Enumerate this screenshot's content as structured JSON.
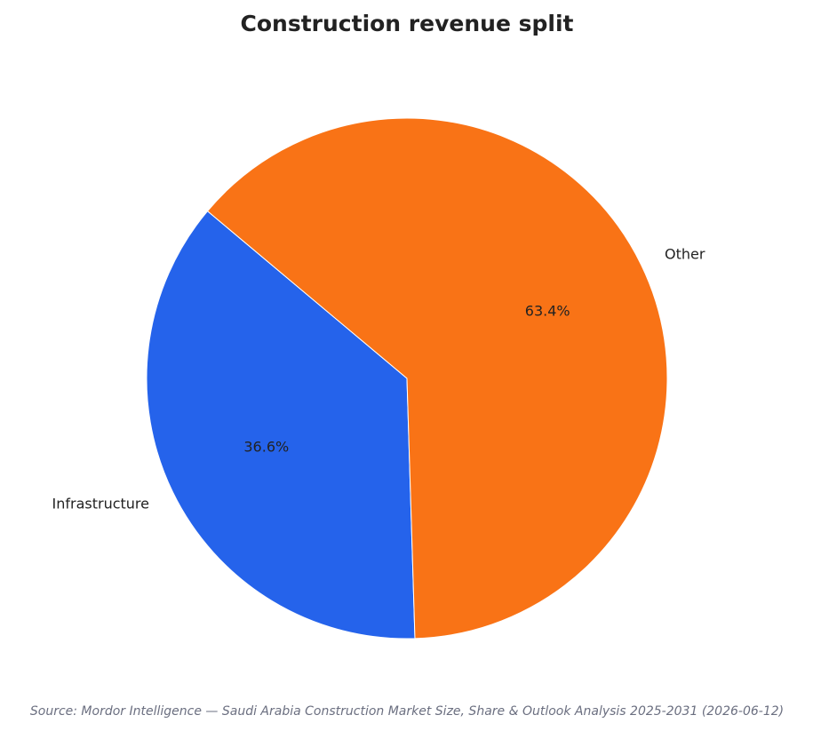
{
  "chart_data": {
    "type": "pie",
    "title": "Construction revenue split",
    "categories": [
      "Infrastructure",
      "Other"
    ],
    "values": [
      36.6,
      63.4
    ],
    "value_labels": [
      "36.6%",
      "63.4%"
    ],
    "colors": [
      "#2563eb",
      "#f97316"
    ],
    "start_angle_deg": 140,
    "direction": "counterclockwise",
    "legend": "none",
    "source": "Source: Mordor Intelligence — Saudi Arabia Construction Market Size, Share & Outlook Analysis 2025-2031 (2026-06-12)"
  }
}
